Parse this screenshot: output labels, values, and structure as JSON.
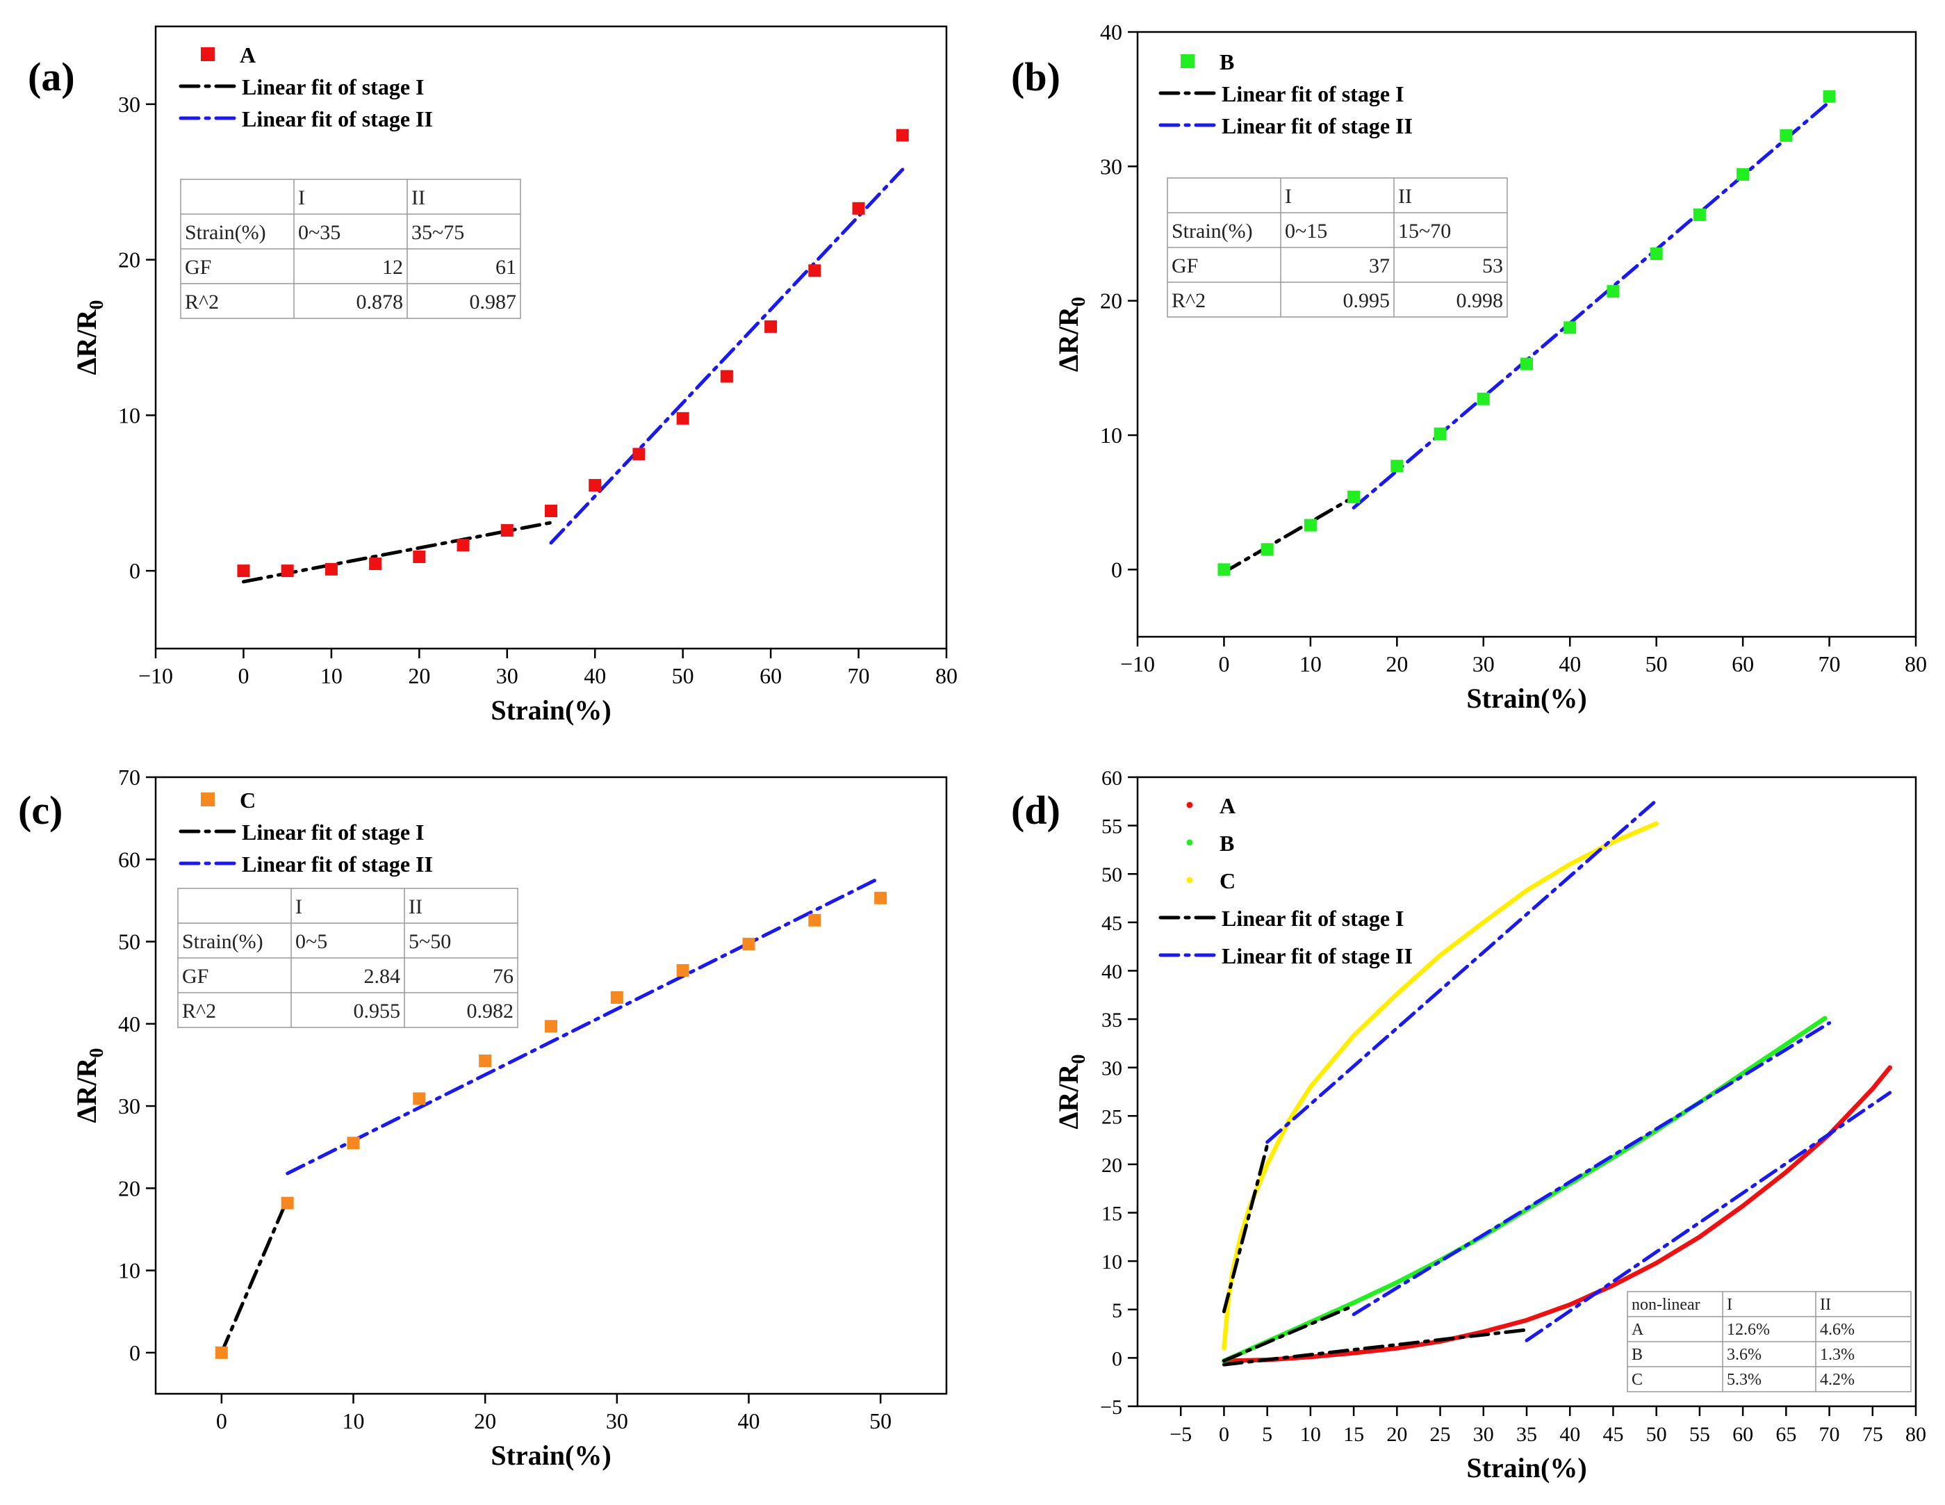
{
  "figure": {
    "panel_count": 4
  },
  "chart_data": [
    {
      "id": "a",
      "panel_label": "(a)",
      "type": "scatter",
      "xlabel": "Strain(%)",
      "ylabel": "ΔR/R0",
      "xlim": [
        -10,
        80
      ],
      "ylim": [
        -5,
        35
      ],
      "xticks": [
        -10,
        0,
        10,
        20,
        30,
        40,
        50,
        60,
        70,
        80
      ],
      "yticks": [
        0,
        10,
        20,
        30
      ],
      "series": [
        {
          "name": "A",
          "kind": "markers",
          "color": "#ee1111",
          "x": [
            0,
            5,
            10,
            15,
            20,
            25,
            30,
            35,
            40,
            45,
            50,
            55,
            60,
            65,
            70,
            75
          ],
          "y": [
            0.0,
            0.0,
            0.1,
            0.45,
            0.9,
            1.65,
            2.6,
            3.85,
            5.5,
            7.5,
            9.8,
            12.5,
            15.7,
            19.3,
            23.3,
            28.0
          ]
        },
        {
          "name": "Linear fit of stage I",
          "kind": "fit",
          "color": "#000000",
          "x": [
            0,
            35
          ],
          "y": [
            -0.7,
            3.1
          ]
        },
        {
          "name": "Linear fit of stage II",
          "kind": "fit",
          "color": "#1a1aee",
          "x": [
            35,
            75
          ],
          "y": [
            1.8,
            25.8
          ]
        }
      ],
      "table": {
        "header": [
          "",
          "I",
          "II"
        ],
        "rows": [
          [
            "Strain(%)",
            "0~35",
            "35~75"
          ],
          [
            "GF",
            "12",
            "61"
          ],
          [
            "R^2",
            "0.878",
            "0.987"
          ]
        ]
      }
    },
    {
      "id": "b",
      "panel_label": "(b)",
      "type": "scatter",
      "xlabel": "Strain(%)",
      "ylabel": "ΔR/R0",
      "xlim": [
        -10,
        80
      ],
      "ylim": [
        -5,
        40
      ],
      "xticks": [
        -10,
        0,
        10,
        20,
        30,
        40,
        50,
        60,
        70,
        80
      ],
      "yticks": [
        0,
        10,
        20,
        30,
        40
      ],
      "series": [
        {
          "name": "B",
          "kind": "markers",
          "color": "#22ee22",
          "x": [
            0,
            5,
            10,
            15,
            20,
            25,
            30,
            35,
            40,
            45,
            50,
            55,
            60,
            65,
            70
          ],
          "y": [
            0.0,
            1.5,
            3.3,
            5.4,
            7.7,
            10.1,
            12.7,
            15.3,
            18.0,
            20.7,
            23.5,
            26.4,
            29.4,
            32.3,
            35.2
          ]
        },
        {
          "name": "Linear fit of stage I",
          "kind": "fit",
          "color": "#000000",
          "x": [
            0,
            15
          ],
          "y": [
            -0.2,
            5.4
          ]
        },
        {
          "name": "Linear fit of stage II",
          "kind": "fit",
          "color": "#1a1aee",
          "x": [
            15,
            70
          ],
          "y": [
            4.6,
            34.8
          ]
        }
      ],
      "table": {
        "header": [
          "",
          "I",
          "II"
        ],
        "rows": [
          [
            "Strain(%)",
            "0~15",
            "15~70"
          ],
          [
            "GF",
            "37",
            "53"
          ],
          [
            "R^2",
            "0.995",
            "0.998"
          ]
        ]
      }
    },
    {
      "id": "c",
      "panel_label": "(c)",
      "type": "scatter",
      "xlabel": "Strain(%)",
      "ylabel": "ΔR/R0",
      "xlim": [
        -5,
        55
      ],
      "ylim": [
        -5,
        70
      ],
      "xticks": [
        0,
        10,
        20,
        30,
        40,
        50
      ],
      "yticks": [
        0,
        10,
        20,
        30,
        40,
        50,
        60,
        70
      ],
      "series": [
        {
          "name": "C",
          "kind": "markers",
          "color": "#f5891f",
          "x": [
            0,
            5,
            10,
            15,
            20,
            25,
            30,
            35,
            40,
            45,
            50
          ],
          "y": [
            0.0,
            18.2,
            25.5,
            30.9,
            35.5,
            39.7,
            43.2,
            46.5,
            49.7,
            52.6,
            55.3
          ]
        },
        {
          "name": "Linear fit of stage I",
          "kind": "fit",
          "color": "#000000",
          "x": [
            0,
            5
          ],
          "y": [
            0.0,
            18.7
          ]
        },
        {
          "name": "Linear fit of stage II",
          "kind": "fit",
          "color": "#1a1aee",
          "x": [
            5,
            50
          ],
          "y": [
            21.8,
            57.8
          ]
        }
      ],
      "table": {
        "header": [
          "",
          "I",
          "II"
        ],
        "rows": [
          [
            "Strain(%)",
            "0~5",
            "5~50"
          ],
          [
            "GF",
            "2.84",
            "76"
          ],
          [
            "R^2",
            "0.955",
            "0.982"
          ]
        ]
      }
    },
    {
      "id": "d",
      "panel_label": "(d)",
      "type": "line",
      "xlabel": "Strain(%)",
      "ylabel": "ΔR/R0",
      "xlim": [
        -10,
        80
      ],
      "ylim": [
        -5,
        60
      ],
      "xticks": [
        -5,
        0,
        5,
        10,
        15,
        20,
        25,
        30,
        35,
        40,
        45,
        50,
        55,
        60,
        65,
        70,
        75,
        80
      ],
      "yticks": [
        -5,
        0,
        5,
        10,
        15,
        20,
        25,
        30,
        35,
        40,
        45,
        50,
        55,
        60
      ],
      "series": [
        {
          "name": "A",
          "kind": "curve",
          "color": "#ee1111",
          "x": [
            0,
            5,
            10,
            15,
            20,
            25,
            30,
            35,
            40,
            45,
            50,
            55,
            60,
            65,
            70,
            75,
            77
          ],
          "y": [
            -0.3,
            -0.2,
            0.1,
            0.5,
            1.0,
            1.7,
            2.7,
            3.9,
            5.5,
            7.5,
            9.8,
            12.5,
            15.7,
            19.2,
            23.1,
            27.8,
            30.0
          ]
        },
        {
          "name": "B",
          "kind": "curve",
          "color": "#22ee22",
          "x": [
            0,
            5,
            10,
            15,
            20,
            25,
            30,
            35,
            40,
            45,
            50,
            55,
            60,
            65,
            69.5
          ],
          "y": [
            -0.3,
            1.7,
            3.7,
            5.7,
            7.8,
            10.1,
            12.6,
            15.3,
            18.0,
            20.7,
            23.5,
            26.4,
            29.4,
            32.4,
            35.1
          ]
        },
        {
          "name": "C",
          "kind": "curve",
          "color": "#ffee00",
          "x": [
            0,
            0.5,
            1,
            2,
            3,
            5,
            7.5,
            10,
            15,
            20,
            25,
            30,
            35,
            40,
            45,
            50
          ],
          "y": [
            1.0,
            6.0,
            9.0,
            12.8,
            15.7,
            20.0,
            24.5,
            28.0,
            33.3,
            37.6,
            41.6,
            45.0,
            48.3,
            51.0,
            53.3,
            55.2
          ]
        },
        {
          "name": "Linear fit of stage I",
          "kind": "fit",
          "color": "#000000",
          "x": [
            0,
            35
          ],
          "y": [
            -0.7,
            2.9
          ]
        },
        {
          "name": "Linear fit of stage I",
          "kind": "fit",
          "color": "#000000",
          "x": [
            0,
            15
          ],
          "y": [
            -0.3,
            5.4
          ]
        },
        {
          "name": "Linear fit of stage I",
          "kind": "fit",
          "color": "#000000",
          "x": [
            0,
            5
          ],
          "y": [
            4.8,
            22.0
          ]
        },
        {
          "name": "Linear fit of stage II",
          "kind": "fit",
          "color": "#1a1aee",
          "x": [
            35,
            77
          ],
          "y": [
            1.8,
            27.4
          ]
        },
        {
          "name": "Linear fit of stage II",
          "kind": "fit",
          "color": "#1a1aee",
          "x": [
            15,
            70
          ],
          "y": [
            4.5,
            34.6
          ]
        },
        {
          "name": "Linear fit of stage II",
          "kind": "fit",
          "color": "#1a1aee",
          "x": [
            5,
            50
          ],
          "y": [
            22.3,
            57.6
          ]
        }
      ],
      "legend": [
        {
          "label": "A",
          "kind": "dot",
          "color": "#ee1111"
        },
        {
          "label": "B",
          "kind": "dot",
          "color": "#22ee22"
        },
        {
          "label": "C",
          "kind": "dot",
          "color": "#ffee00"
        },
        {
          "label": "Linear fit of stage I",
          "kind": "fit",
          "color": "#000000"
        },
        {
          "label": "Linear fit of stage II",
          "kind": "fit",
          "color": "#1a1aee"
        }
      ],
      "table": {
        "header": [
          "non-linear",
          "I",
          "II"
        ],
        "rows": [
          [
            "A",
            "12.6%",
            "4.6%"
          ],
          [
            "B",
            "3.6%",
            "1.3%"
          ],
          [
            "C",
            "5.3%",
            "4.2%"
          ]
        ]
      }
    }
  ]
}
